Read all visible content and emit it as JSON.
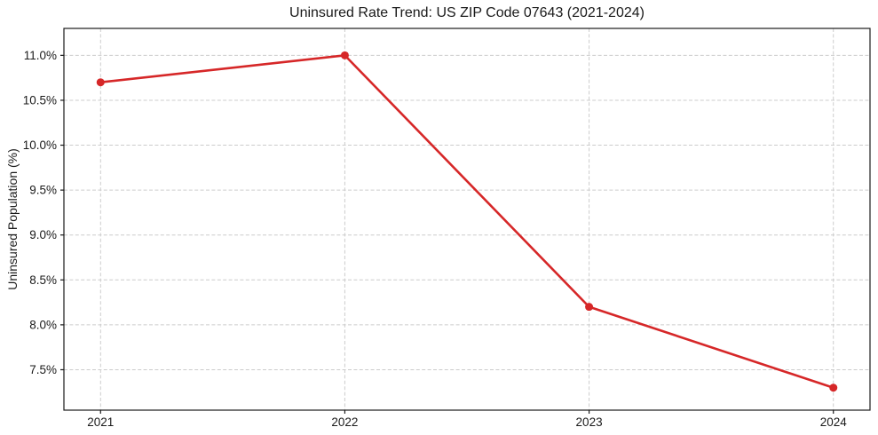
{
  "page": {
    "background": "#ffffff"
  },
  "chart_data": {
    "type": "line",
    "title": "Uninsured Rate Trend: US ZIP Code 07643 (2021-2024)",
    "xlabel": "",
    "ylabel": "Uninsured Population (%)",
    "x": [
      2021,
      2022,
      2023,
      2024
    ],
    "x_tick_labels": [
      "2021",
      "2022",
      "2023",
      "2024"
    ],
    "series": [
      {
        "name": "Uninsured rate",
        "values": [
          10.7,
          11.0,
          8.2,
          7.3
        ],
        "color": "#d62728",
        "marker": "circle",
        "line_width": 2.6,
        "marker_radius": 4.5
      }
    ],
    "y_ticks": [
      7.5,
      8.0,
      8.5,
      9.0,
      9.5,
      10.0,
      10.5,
      11.0
    ],
    "y_tick_labels": [
      "7.5%",
      "8.0%",
      "8.5%",
      "9.0%",
      "9.5%",
      "10.0%",
      "10.5%",
      "11.0%"
    ],
    "xlim": [
      2020.85,
      2024.15
    ],
    "ylim": [
      7.05,
      11.3
    ],
    "grid": true,
    "grid_style": "dashed",
    "grid_color": "#cccccc",
    "axis_color": "#1a1a1a",
    "text_color": "#1a1a1a",
    "legend_position": "none"
  }
}
